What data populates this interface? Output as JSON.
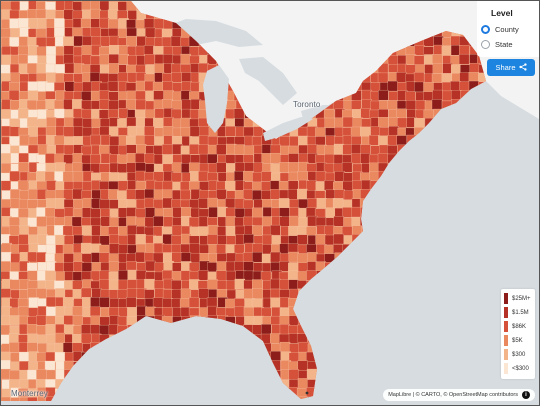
{
  "map": {
    "cities": [
      {
        "name": "Toronto",
        "key": "toronto"
      },
      {
        "name": "Monterrey",
        "key": "monterrey"
      }
    ]
  },
  "controls": {
    "level_title": "Level",
    "options": [
      {
        "label": "County",
        "selected": true
      },
      {
        "label": "State",
        "selected": false
      }
    ],
    "share_label": "Share",
    "share_icon": "share-icon"
  },
  "legend": {
    "items": [
      {
        "label": "$25M+",
        "color": "#8c1d1a"
      },
      {
        "label": "$1.5M",
        "color": "#b63226"
      },
      {
        "label": "$86K",
        "color": "#d6513a"
      },
      {
        "label": "$5K",
        "color": "#ea8860"
      },
      {
        "label": "$300",
        "color": "#f4b48a"
      },
      {
        "label": "<$300",
        "color": "#fbe6d3"
      }
    ]
  },
  "attribution": {
    "text": "MapLibre | © CARTO, © OpenStreetMap contributors",
    "info_icon": "info-icon"
  }
}
